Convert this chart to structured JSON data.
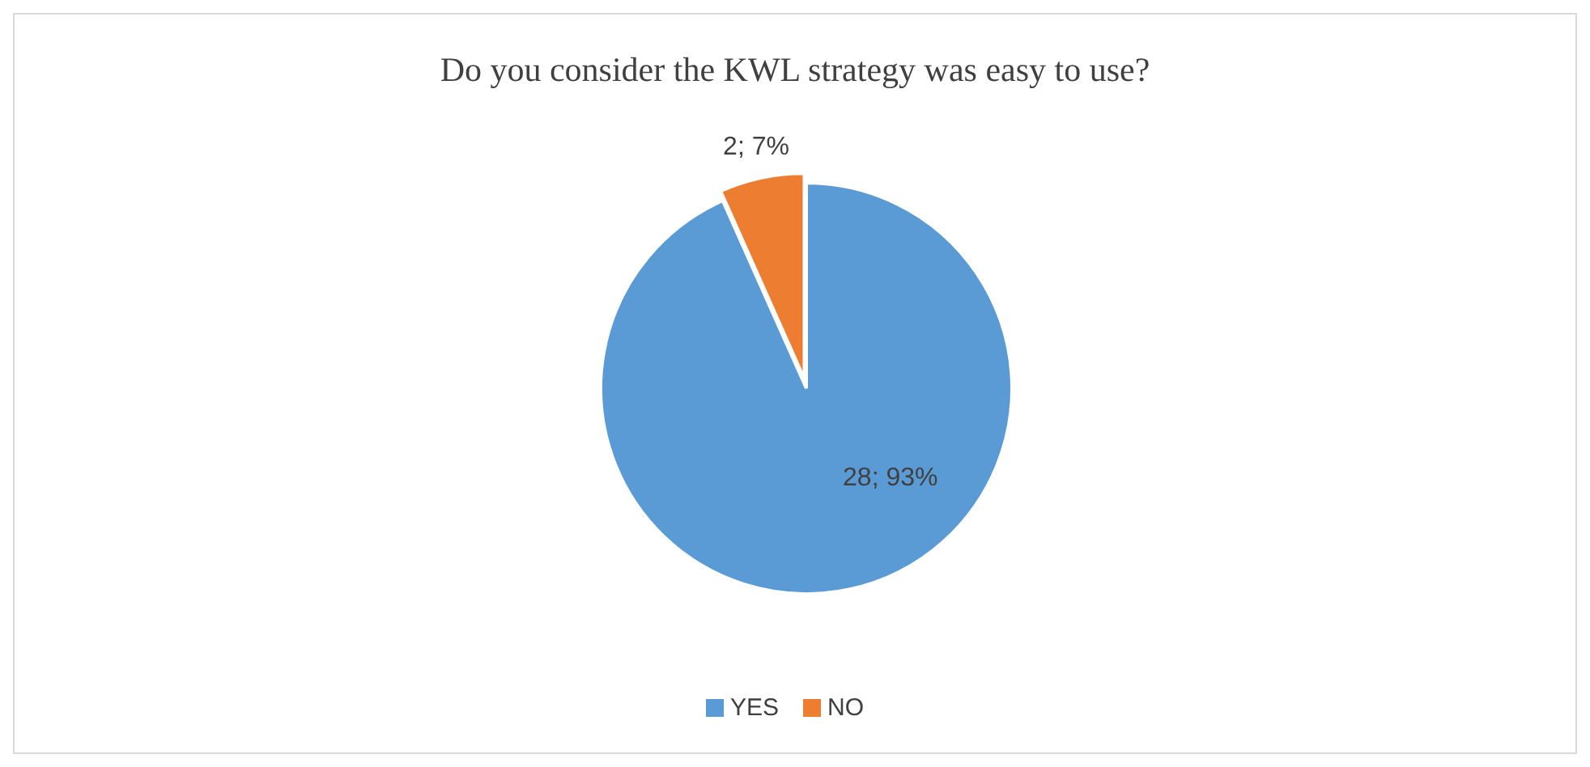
{
  "chart_data": {
    "type": "pie",
    "title": "Do you consider the KWL strategy was easy to use?",
    "categories": [
      "YES",
      "NO"
    ],
    "values": [
      28,
      2
    ],
    "colors": [
      "#5b9bd5",
      "#ed7d31"
    ],
    "value_labels": [
      "28; 93%",
      "2; 7%"
    ],
    "legend": "bottom"
  }
}
